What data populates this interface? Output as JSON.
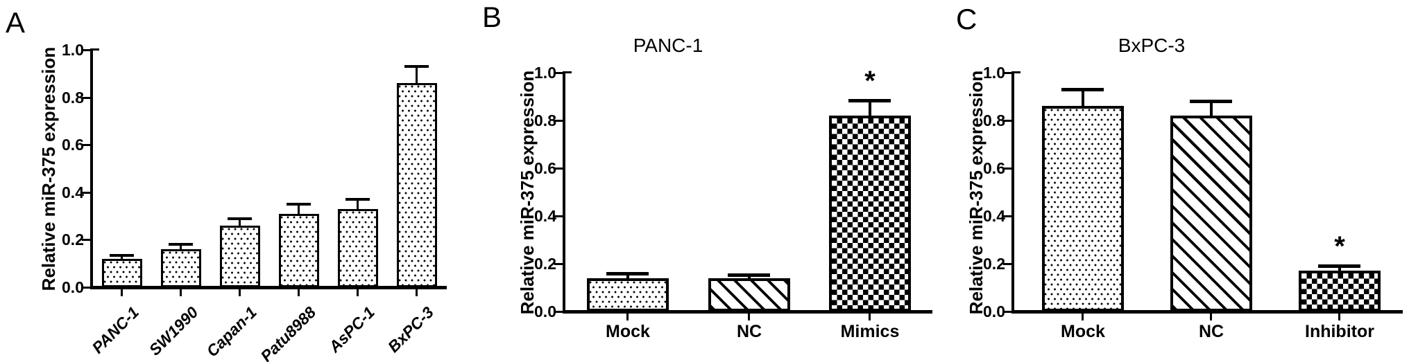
{
  "figure": {
    "background_color": "#ffffff",
    "ink_color": "#000000",
    "description": "Three-panel bar figure of relative miR-375 expression"
  },
  "chart_data": [
    {
      "type": "bar",
      "panel_letter": "A",
      "title": "",
      "ylabel": "Relative miR-375 expression",
      "ylim": [
        0.0,
        1.0
      ],
      "yticks": [
        "0.0",
        "0.2",
        "0.4",
        "0.6",
        "0.8",
        "1.0"
      ],
      "grid": false,
      "legend": false,
      "categories": [
        "PANC-1",
        "SW1990",
        "Capan-1",
        "Patu8988",
        "AsPC-1",
        "BxPC-3"
      ],
      "values": [
        0.12,
        0.16,
        0.26,
        0.31,
        0.33,
        0.86
      ],
      "errors_plus": [
        0.015,
        0.02,
        0.03,
        0.04,
        0.04,
        0.07
      ],
      "bar_patterns": [
        "dots",
        "dots",
        "dots",
        "dots",
        "dots",
        "dots"
      ],
      "significance": [
        "",
        "",
        "",
        "",
        "",
        ""
      ],
      "x_tick_label_style": "rotated-45-italic"
    },
    {
      "type": "bar",
      "panel_letter": "B",
      "title": "PANC-1",
      "ylabel": "Relative miR-375 expression",
      "ylim": [
        0.0,
        1.0
      ],
      "yticks": [
        "0.0",
        "0.2",
        "0.4",
        "0.6",
        "0.8",
        "1.0"
      ],
      "grid": false,
      "legend": false,
      "categories": [
        "Mock",
        "NC",
        "Mimics"
      ],
      "values": [
        0.14,
        0.14,
        0.82
      ],
      "errors_plus": [
        0.02,
        0.015,
        0.065
      ],
      "bar_patterns": [
        "dots",
        "diagonal",
        "checker"
      ],
      "significance": [
        "",
        "",
        "*"
      ],
      "x_tick_label_style": "horizontal"
    },
    {
      "type": "bar",
      "panel_letter": "C",
      "title": "BxPC-3",
      "ylabel": "Relative miR-375 expression",
      "ylim": [
        0.0,
        1.0
      ],
      "yticks": [
        "0.0",
        "0.2",
        "0.4",
        "0.6",
        "0.8",
        "1.0"
      ],
      "grid": false,
      "legend": false,
      "categories": [
        "Mock",
        "NC",
        "Inhibitor"
      ],
      "values": [
        0.86,
        0.82,
        0.17
      ],
      "errors_plus": [
        0.07,
        0.06,
        0.02
      ],
      "bar_patterns": [
        "dots",
        "diagonal",
        "checker"
      ],
      "significance": [
        "",
        "",
        "*"
      ],
      "x_tick_label_style": "horizontal"
    }
  ]
}
